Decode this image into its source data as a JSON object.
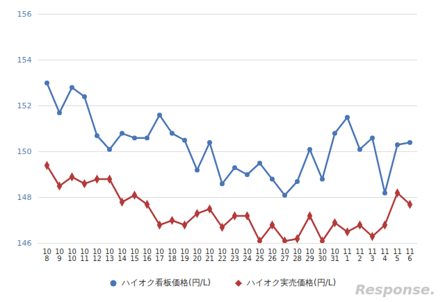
{
  "chart_data": {
    "type": "line",
    "categories": [
      "10\n8",
      "10\n9",
      "10\n10",
      "10\n11",
      "10\n12",
      "10\n13",
      "10\n14",
      "10\n15",
      "10\n16",
      "10\n17",
      "10\n18",
      "10\n19",
      "10\n20",
      "10\n21",
      "10\n22",
      "10\n23",
      "10\n24",
      "10\n25",
      "10\n26",
      "10\n27",
      "10\n28",
      "10\n29",
      "10\n30",
      "10\n31",
      "11\n1",
      "11\n2",
      "11\n3",
      "11\n4",
      "11\n5",
      "11\n6"
    ],
    "series": [
      {
        "name": "ハイオク看板価格(円/L)",
        "color": "#4a76b8",
        "marker": "circle",
        "values": [
          153.0,
          151.7,
          152.8,
          152.4,
          150.7,
          150.1,
          150.8,
          150.6,
          150.6,
          151.6,
          150.8,
          150.5,
          149.2,
          150.4,
          148.6,
          149.3,
          149.0,
          149.5,
          148.8,
          148.1,
          148.7,
          150.1,
          148.8,
          150.8,
          151.5,
          150.1,
          150.6,
          148.2,
          150.3,
          150.4
        ]
      },
      {
        "name": "ハイオク実売価格(円/L)",
        "color": "#b33a3a",
        "marker": "diamond",
        "values": [
          149.4,
          148.5,
          148.9,
          148.6,
          148.8,
          148.8,
          147.8,
          148.1,
          147.7,
          146.8,
          147.0,
          146.8,
          147.3,
          147.5,
          146.7,
          147.2,
          147.2,
          146.1,
          146.8,
          146.1,
          146.2,
          147.2,
          146.1,
          146.9,
          146.5,
          146.8,
          146.3,
          146.8,
          148.2,
          147.7
        ]
      }
    ],
    "ylim": [
      146,
      156
    ],
    "yticks": [
      146,
      148,
      150,
      152,
      154,
      156
    ],
    "grid": true,
    "legend": "bottom",
    "annotations": [
      "Response."
    ]
  }
}
